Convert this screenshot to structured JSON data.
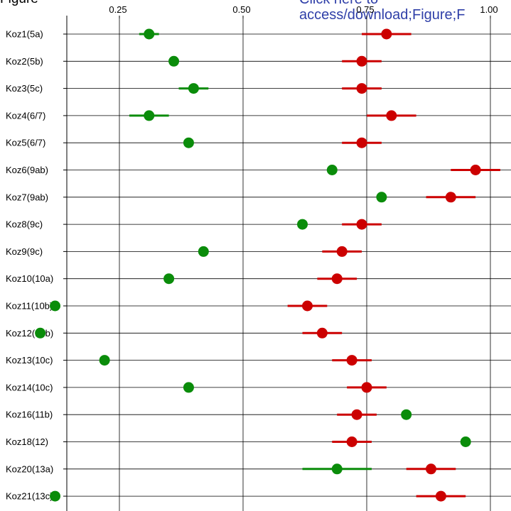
{
  "header": {
    "title_fragment": "Figure",
    "link_line1": "Click here to",
    "link_line2": "access/download;Figure;F"
  },
  "colors": {
    "green": "#0a8c0a",
    "red": "#cc0000",
    "link": "#2f3fa8",
    "axis": "#000000"
  },
  "chart_data": {
    "type": "scatter",
    "title": "",
    "xlabel": "",
    "ylabel": "",
    "xlim": [
      0.0,
      1.0
    ],
    "x_ticks": [
      0.25,
      0.5,
      0.75,
      1.0
    ],
    "x_tick_labels": [
      "0.25",
      "0.50",
      "0.75",
      "1.00"
    ],
    "grid": "horizontal lines at each category, vertical lines at ticks",
    "categories": [
      "Koz1(5a)",
      "Koz2(5b)",
      "Koz3(5c)",
      "Koz4(6/7)",
      "Koz5(6/7)",
      "Koz6(9ab)",
      "Koz7(9ab)",
      "Koz8(9c)",
      "Koz9(9c)",
      "Koz10(10a)",
      "Koz11(10b)",
      "Koz12(10b)",
      "Koz13(10c)",
      "Koz14(10c)",
      "Koz16(11b)",
      "Koz18(12)",
      "Koz20(13a)",
      "Koz21(13c)"
    ],
    "series": [
      {
        "color": "#0a8c0a",
        "points": [
          {
            "x": 0.31,
            "lo": 0.29,
            "hi": 0.33
          },
          {
            "x": 0.36,
            "lo": 0.35,
            "hi": 0.37
          },
          {
            "x": 0.4,
            "lo": 0.37,
            "hi": 0.43
          },
          {
            "x": 0.31,
            "lo": 0.27,
            "hi": 0.35
          },
          {
            "x": 0.39,
            "lo": 0.38,
            "hi": 0.4
          },
          {
            "x": 0.68,
            "lo": 0.67,
            "hi": 0.69
          },
          {
            "x": 0.78,
            "lo": 0.77,
            "hi": 0.79
          },
          {
            "x": 0.62,
            "lo": 0.61,
            "hi": 0.63
          },
          {
            "x": 0.42,
            "lo": 0.41,
            "hi": 0.43
          },
          {
            "x": 0.35,
            "lo": 0.34,
            "hi": 0.36
          },
          {
            "x": 0.12,
            "lo": 0.11,
            "hi": 0.13
          },
          {
            "x": 0.09,
            "lo": 0.08,
            "hi": 0.1
          },
          {
            "x": 0.22,
            "lo": 0.21,
            "hi": 0.23
          },
          {
            "x": 0.39,
            "lo": 0.38,
            "hi": 0.4
          },
          {
            "x": 0.83,
            "lo": 0.82,
            "hi": 0.84
          },
          {
            "x": 0.95,
            "lo": 0.94,
            "hi": 0.96
          },
          {
            "x": 0.69,
            "lo": 0.62,
            "hi": 0.76
          },
          {
            "x": 0.12,
            "lo": 0.11,
            "hi": 0.13
          }
        ]
      },
      {
        "color": "#cc0000",
        "points": [
          {
            "x": 0.79,
            "lo": 0.74,
            "hi": 0.84
          },
          {
            "x": 0.74,
            "lo": 0.7,
            "hi": 0.78
          },
          {
            "x": 0.74,
            "lo": 0.7,
            "hi": 0.78
          },
          {
            "x": 0.8,
            "lo": 0.75,
            "hi": 0.85
          },
          {
            "x": 0.74,
            "lo": 0.7,
            "hi": 0.78
          },
          {
            "x": 0.97,
            "lo": 0.92,
            "hi": 1.02
          },
          {
            "x": 0.92,
            "lo": 0.87,
            "hi": 0.97
          },
          {
            "x": 0.74,
            "lo": 0.7,
            "hi": 0.78
          },
          {
            "x": 0.7,
            "lo": 0.66,
            "hi": 0.74
          },
          {
            "x": 0.69,
            "lo": 0.65,
            "hi": 0.73
          },
          {
            "x": 0.63,
            "lo": 0.59,
            "hi": 0.67
          },
          {
            "x": 0.66,
            "lo": 0.62,
            "hi": 0.7
          },
          {
            "x": 0.72,
            "lo": 0.68,
            "hi": 0.76
          },
          {
            "x": 0.75,
            "lo": 0.71,
            "hi": 0.79
          },
          {
            "x": 0.73,
            "lo": 0.69,
            "hi": 0.77
          },
          {
            "x": 0.72,
            "lo": 0.68,
            "hi": 0.76
          },
          {
            "x": 0.88,
            "lo": 0.83,
            "hi": 0.93
          },
          {
            "x": 0.9,
            "lo": 0.85,
            "hi": 0.95
          }
        ]
      }
    ]
  }
}
